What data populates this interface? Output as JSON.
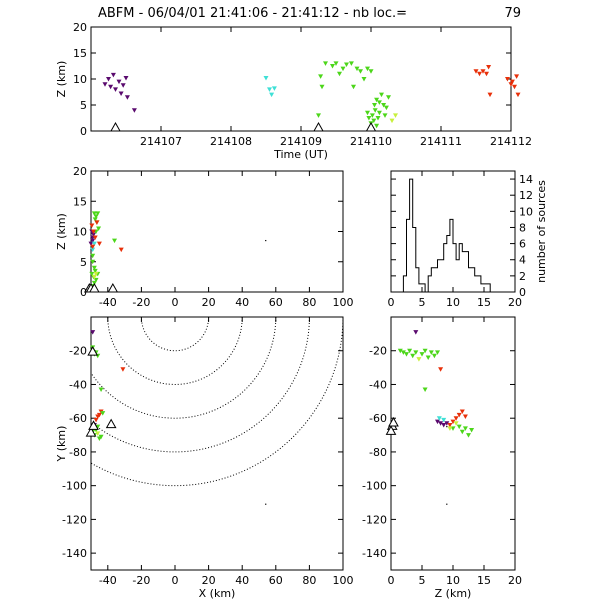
{
  "title": {
    "prefix": "ABFM - 06/04/01 21:41:06 - 21:41:12 - nb loc.=",
    "count": "79"
  },
  "chart_data": [
    {
      "id": "time_z",
      "type": "scatter",
      "xlabel": "Time (UT)",
      "ylabel": "Z (km)",
      "xlim": [
        214106.0,
        214112.0
      ],
      "ylim": [
        0,
        20
      ],
      "xticks": [
        "214107",
        "214108",
        "214109",
        "214110",
        "214111",
        "214112"
      ],
      "yticks": [
        "0",
        "5",
        "10",
        "15",
        "20"
      ],
      "stations_x": [
        214106.35,
        214109.25,
        214110.0
      ],
      "points": [
        {
          "x": 214106.2,
          "y": 9.0,
          "c": "#5a0a6e"
        },
        {
          "x": 214106.25,
          "y": 10.0,
          "c": "#5a0a6e"
        },
        {
          "x": 214106.28,
          "y": 8.5,
          "c": "#5a0a6e"
        },
        {
          "x": 214106.32,
          "y": 10.8,
          "c": "#5a0a6e"
        },
        {
          "x": 214106.35,
          "y": 8.0,
          "c": "#5a0a6e"
        },
        {
          "x": 214106.4,
          "y": 9.5,
          "c": "#5a0a6e"
        },
        {
          "x": 214106.43,
          "y": 7.2,
          "c": "#5a0a6e"
        },
        {
          "x": 214106.46,
          "y": 8.8,
          "c": "#5a0a6e"
        },
        {
          "x": 214106.5,
          "y": 10.2,
          "c": "#5a0a6e"
        },
        {
          "x": 214106.52,
          "y": 6.5,
          "c": "#5a0a6e"
        },
        {
          "x": 214106.62,
          "y": 4.0,
          "c": "#5a0a6e"
        },
        {
          "x": 214108.5,
          "y": 10.2,
          "c": "#3ee0d6"
        },
        {
          "x": 214108.55,
          "y": 8.0,
          "c": "#3ee0d6"
        },
        {
          "x": 214108.58,
          "y": 7.0,
          "c": "#3ee0d6"
        },
        {
          "x": 214108.62,
          "y": 8.2,
          "c": "#3ee0d6"
        },
        {
          "x": 214109.25,
          "y": 3.0,
          "c": "#4cd61a"
        },
        {
          "x": 214109.28,
          "y": 10.5,
          "c": "#4cd61a"
        },
        {
          "x": 214109.3,
          "y": 8.5,
          "c": "#4cd61a"
        },
        {
          "x": 214109.35,
          "y": 13.0,
          "c": "#4cd61a"
        },
        {
          "x": 214109.45,
          "y": 12.5,
          "c": "#4cd61a"
        },
        {
          "x": 214109.5,
          "y": 13.0,
          "c": "#4cd61a"
        },
        {
          "x": 214109.55,
          "y": 11.0,
          "c": "#4cd61a"
        },
        {
          "x": 214109.6,
          "y": 12.0,
          "c": "#4cd61a"
        },
        {
          "x": 214109.65,
          "y": 12.8,
          "c": "#4cd61a"
        },
        {
          "x": 214109.72,
          "y": 13.0,
          "c": "#4cd61a"
        },
        {
          "x": 214109.8,
          "y": 12.0,
          "c": "#4cd61a"
        },
        {
          "x": 214109.85,
          "y": 11.5,
          "c": "#4cd61a"
        },
        {
          "x": 214109.9,
          "y": 10.0,
          "c": "#4cd61a"
        },
        {
          "x": 214109.95,
          "y": 12.0,
          "c": "#4cd61a"
        },
        {
          "x": 214110.0,
          "y": 11.5,
          "c": "#4cd61a"
        },
        {
          "x": 214109.75,
          "y": 8.5,
          "c": "#4cd61a"
        },
        {
          "x": 214109.95,
          "y": 3.5,
          "c": "#4cd61a"
        },
        {
          "x": 214109.97,
          "y": 2.5,
          "c": "#4cd61a"
        },
        {
          "x": 214110.0,
          "y": 1.5,
          "c": "#4cd61a"
        },
        {
          "x": 214110.02,
          "y": 3.0,
          "c": "#4cd61a"
        },
        {
          "x": 214110.04,
          "y": 2.0,
          "c": "#4cd61a"
        },
        {
          "x": 214110.06,
          "y": 4.0,
          "c": "#4cd61a"
        },
        {
          "x": 214110.08,
          "y": 1.0,
          "c": "#4cd61a"
        },
        {
          "x": 214110.1,
          "y": 2.5,
          "c": "#4cd61a"
        },
        {
          "x": 214110.12,
          "y": 3.5,
          "c": "#4cd61a"
        },
        {
          "x": 214110.05,
          "y": 5.0,
          "c": "#4cd61a"
        },
        {
          "x": 214110.08,
          "y": 6.0,
          "c": "#4cd61a"
        },
        {
          "x": 214110.12,
          "y": 5.5,
          "c": "#4cd61a"
        },
        {
          "x": 214110.15,
          "y": 7.0,
          "c": "#4cd61a"
        },
        {
          "x": 214110.18,
          "y": 5.0,
          "c": "#4cd61a"
        },
        {
          "x": 214110.2,
          "y": 3.0,
          "c": "#4cd61a"
        },
        {
          "x": 214110.22,
          "y": 4.5,
          "c": "#4cd61a"
        },
        {
          "x": 214110.25,
          "y": 6.5,
          "c": "#4cd61a"
        },
        {
          "x": 214110.3,
          "y": 2.0,
          "c": "#c8f03c"
        },
        {
          "x": 214110.35,
          "y": 3.0,
          "c": "#c8f03c"
        },
        {
          "x": 214111.5,
          "y": 11.5,
          "c": "#e8300a"
        },
        {
          "x": 214111.55,
          "y": 11.0,
          "c": "#e8300a"
        },
        {
          "x": 214111.6,
          "y": 11.5,
          "c": "#e8300a"
        },
        {
          "x": 214111.65,
          "y": 11.0,
          "c": "#e8300a"
        },
        {
          "x": 214111.68,
          "y": 12.3,
          "c": "#e8300a"
        },
        {
          "x": 214111.7,
          "y": 7.0,
          "c": "#e8300a"
        },
        {
          "x": 214111.95,
          "y": 10.0,
          "c": "#e8300a"
        },
        {
          "x": 214112.0,
          "y": 9.0,
          "c": "#e8300a"
        },
        {
          "x": 214112.02,
          "y": 9.5,
          "c": "#e8300a"
        },
        {
          "x": 214112.05,
          "y": 8.5,
          "c": "#e8300a"
        },
        {
          "x": 214112.08,
          "y": 10.5,
          "c": "#e8300a"
        },
        {
          "x": 214112.1,
          "y": 7.0,
          "c": "#e8300a"
        }
      ]
    },
    {
      "id": "x_z",
      "type": "scatter",
      "xlabel": "",
      "ylabel": "Z (km)",
      "xlim": [
        -50,
        100
      ],
      "ylim": [
        0,
        20
      ],
      "xticks": [
        "-40",
        "-20",
        "0",
        "20",
        "40",
        "60",
        "80",
        "100"
      ],
      "yticks": [
        "0",
        "5",
        "10",
        "15",
        "20"
      ],
      "stations_x": [
        -51,
        -50,
        -48,
        -37
      ],
      "points": [
        {
          "x": -49,
          "y": 9.0,
          "c": "#5a0a6e"
        },
        {
          "x": -49.5,
          "y": 10.0,
          "c": "#5a0a6e"
        },
        {
          "x": -49,
          "y": 8.5,
          "c": "#5a0a6e"
        },
        {
          "x": -48.5,
          "y": 9.5,
          "c": "#5a0a6e"
        },
        {
          "x": -50,
          "y": 8.0,
          "c": "#5a0a6e"
        },
        {
          "x": -49,
          "y": 7.0,
          "c": "#3ee0d6"
        },
        {
          "x": -48,
          "y": 8.0,
          "c": "#3ee0d6"
        },
        {
          "x": -48,
          "y": 13.0,
          "c": "#4cd61a"
        },
        {
          "x": -47,
          "y": 12.5,
          "c": "#4cd61a"
        },
        {
          "x": -47.5,
          "y": 12.0,
          "c": "#4cd61a"
        },
        {
          "x": -46,
          "y": 13.0,
          "c": "#4cd61a"
        },
        {
          "x": -46.5,
          "y": 11.5,
          "c": "#4cd61a"
        },
        {
          "x": -45.5,
          "y": 10.5,
          "c": "#4cd61a"
        },
        {
          "x": -47,
          "y": 10.0,
          "c": "#4cd61a"
        },
        {
          "x": -49,
          "y": 6.0,
          "c": "#4cd61a"
        },
        {
          "x": -49,
          "y": 5.0,
          "c": "#4cd61a"
        },
        {
          "x": -48,
          "y": 4.0,
          "c": "#4cd61a"
        },
        {
          "x": -49.5,
          "y": 3.0,
          "c": "#4cd61a"
        },
        {
          "x": -48.5,
          "y": 2.5,
          "c": "#4cd61a"
        },
        {
          "x": -47.5,
          "y": 3.5,
          "c": "#4cd61a"
        },
        {
          "x": -48,
          "y": 1.5,
          "c": "#4cd61a"
        },
        {
          "x": -49,
          "y": 1.0,
          "c": "#4cd61a"
        },
        {
          "x": -47,
          "y": 2.0,
          "c": "#4cd61a"
        },
        {
          "x": -46,
          "y": 3.0,
          "c": "#4cd61a"
        },
        {
          "x": -36,
          "y": 8.5,
          "c": "#4cd61a"
        },
        {
          "x": -48,
          "y": 2.5,
          "c": "#c8f03c"
        },
        {
          "x": -47,
          "y": 3.0,
          "c": "#c8f03c"
        },
        {
          "x": -49.5,
          "y": 11.0,
          "c": "#e8300a"
        },
        {
          "x": -48.5,
          "y": 10.0,
          "c": "#e8300a"
        },
        {
          "x": -47.5,
          "y": 9.0,
          "c": "#e8300a"
        },
        {
          "x": -46.5,
          "y": 11.5,
          "c": "#e8300a"
        },
        {
          "x": -45,
          "y": 8.0,
          "c": "#e8300a"
        },
        {
          "x": -49,
          "y": 7.5,
          "c": "#e8300a"
        },
        {
          "x": -32,
          "y": 7.0,
          "c": "#e8300a"
        },
        {
          "x": 54,
          "y": 8.5,
          "c": "#000000"
        }
      ]
    },
    {
      "id": "histogram",
      "type": "bar",
      "xlabel": "",
      "ylabel": "number of sources",
      "xlim": [
        0,
        20
      ],
      "ylim": [
        0,
        15
      ],
      "bin_width": 0.5,
      "xticks": [
        "0",
        "5",
        "10",
        "15",
        "20"
      ],
      "yticks": [
        "0",
        "2",
        "4",
        "6",
        "8",
        "10",
        "12",
        "14"
      ],
      "bin_start": 0,
      "counts": [
        0,
        0,
        0,
        0,
        2,
        9,
        14,
        8,
        3,
        1,
        1,
        0,
        2,
        3,
        3,
        4,
        4,
        6,
        7,
        9,
        6,
        4,
        6,
        5,
        5,
        3,
        3,
        2,
        2,
        1,
        1,
        1,
        0,
        0,
        0,
        0,
        0,
        0,
        0,
        0
      ]
    },
    {
      "id": "x_y",
      "type": "scatter",
      "xlabel": "X (km)",
      "ylabel": "Y (km)",
      "xlim": [
        -50,
        100
      ],
      "ylim": [
        -150,
        0
      ],
      "xticks": [
        "-40",
        "-20",
        "0",
        "20",
        "40",
        "60",
        "80",
        "100"
      ],
      "yticks": [
        "-140",
        "-120",
        "-100",
        "-80",
        "-60",
        "-40",
        "-20"
      ],
      "range_rings_km": [
        20,
        40,
        60,
        80,
        100
      ],
      "ring_center": [
        0,
        0
      ],
      "stations": [
        {
          "x": -49,
          "y": -22
        },
        {
          "x": -50,
          "y": -70
        },
        {
          "x": -48.5,
          "y": -66
        },
        {
          "x": -38,
          "y": -65
        }
      ],
      "points": [
        {
          "x": -49,
          "y": -9,
          "c": "#5a0a6e"
        },
        {
          "x": -49,
          "y": -20,
          "c": "#4cd61a"
        },
        {
          "x": -48,
          "y": -22,
          "c": "#4cd61a"
        },
        {
          "x": -47,
          "y": -21,
          "c": "#4cd61a"
        },
        {
          "x": -46,
          "y": -23,
          "c": "#4cd61a"
        },
        {
          "x": -49,
          "y": -18,
          "c": "#4cd61a"
        },
        {
          "x": -31,
          "y": -31,
          "c": "#e8300a"
        },
        {
          "x": -44,
          "y": -43,
          "c": "#4cd61a"
        },
        {
          "x": -49,
          "y": -66,
          "c": "#3ee0d6"
        },
        {
          "x": -48,
          "y": -64,
          "c": "#5a0a6e"
        },
        {
          "x": -47,
          "y": -61,
          "c": "#e8300a"
        },
        {
          "x": -46,
          "y": -59,
          "c": "#e8300a"
        },
        {
          "x": -45,
          "y": -58,
          "c": "#e8300a"
        },
        {
          "x": -44,
          "y": -56,
          "c": "#e8300a"
        },
        {
          "x": -43,
          "y": -57,
          "c": "#4cd61a"
        },
        {
          "x": -49,
          "y": -68,
          "c": "#4cd61a"
        },
        {
          "x": -48,
          "y": -70,
          "c": "#4cd61a"
        },
        {
          "x": -47,
          "y": -67,
          "c": "#4cd61a"
        },
        {
          "x": -46,
          "y": -69,
          "c": "#c8f03c"
        },
        {
          "x": -45,
          "y": -72,
          "c": "#4cd61a"
        },
        {
          "x": -44,
          "y": -71,
          "c": "#4cd61a"
        },
        {
          "x": -46,
          "y": -65,
          "c": "#4cd61a"
        },
        {
          "x": 54,
          "y": -111,
          "c": "#000000"
        }
      ]
    },
    {
      "id": "z_y",
      "type": "scatter",
      "xlabel": "Z (km)",
      "ylabel": "",
      "xlim": [
        0,
        20
      ],
      "ylim": [
        -150,
        0
      ],
      "xticks": [
        "0",
        "5",
        "10",
        "15",
        "20"
      ],
      "yticks": [
        "-140",
        "-120",
        "-100",
        "-80",
        "-60",
        "-40",
        "-20"
      ],
      "stations_x": [
        0.2,
        0.0,
        0.4
      ],
      "stations_y": [
        -66,
        -69,
        -64
      ],
      "points": [
        {
          "x": 4,
          "y": -9,
          "c": "#5a0a6e"
        },
        {
          "x": 1.5,
          "y": -20,
          "c": "#4cd61a"
        },
        {
          "x": 2,
          "y": -21,
          "c": "#4cd61a"
        },
        {
          "x": 2.5,
          "y": -22,
          "c": "#4cd61a"
        },
        {
          "x": 3,
          "y": -20,
          "c": "#4cd61a"
        },
        {
          "x": 3.5,
          "y": -23,
          "c": "#4cd61a"
        },
        {
          "x": 4,
          "y": -21,
          "c": "#4cd61a"
        },
        {
          "x": 5,
          "y": -22,
          "c": "#4cd61a"
        },
        {
          "x": 5.5,
          "y": -20,
          "c": "#4cd61a"
        },
        {
          "x": 6,
          "y": -24,
          "c": "#4cd61a"
        },
        {
          "x": 6.5,
          "y": -21,
          "c": "#4cd61a"
        },
        {
          "x": 7,
          "y": -23,
          "c": "#4cd61a"
        },
        {
          "x": 7.5,
          "y": -21,
          "c": "#4cd61a"
        },
        {
          "x": 4.5,
          "y": -25,
          "c": "#c8f03c"
        },
        {
          "x": 8,
          "y": -31,
          "c": "#e8300a"
        },
        {
          "x": 5.5,
          "y": -43,
          "c": "#4cd61a"
        },
        {
          "x": 7.5,
          "y": -62,
          "c": "#5a0a6e"
        },
        {
          "x": 8,
          "y": -63,
          "c": "#5a0a6e"
        },
        {
          "x": 8.5,
          "y": -64,
          "c": "#5a0a6e"
        },
        {
          "x": 9,
          "y": -63,
          "c": "#5a0a6e"
        },
        {
          "x": 7.8,
          "y": -60,
          "c": "#3ee0d6"
        },
        {
          "x": 8.5,
          "y": -61,
          "c": "#3ee0d6"
        },
        {
          "x": 9.5,
          "y": -64,
          "c": "#e8300a"
        },
        {
          "x": 10,
          "y": -62,
          "c": "#e8300a"
        },
        {
          "x": 10.5,
          "y": -60,
          "c": "#e8300a"
        },
        {
          "x": 11,
          "y": -58,
          "c": "#e8300a"
        },
        {
          "x": 11.5,
          "y": -56,
          "c": "#e8300a"
        },
        {
          "x": 12,
          "y": -59,
          "c": "#e8300a"
        },
        {
          "x": 10,
          "y": -66,
          "c": "#4cd61a"
        },
        {
          "x": 11,
          "y": -65,
          "c": "#4cd61a"
        },
        {
          "x": 11.5,
          "y": -68,
          "c": "#4cd61a"
        },
        {
          "x": 12,
          "y": -66,
          "c": "#4cd61a"
        },
        {
          "x": 12.5,
          "y": -70,
          "c": "#4cd61a"
        },
        {
          "x": 13,
          "y": -67,
          "c": "#4cd61a"
        },
        {
          "x": 10.5,
          "y": -63,
          "c": "#c8f03c"
        },
        {
          "x": 9.5,
          "y": -66,
          "c": "#c8f03c"
        },
        {
          "x": 9,
          "y": -65,
          "c": "#000000"
        },
        {
          "x": 9,
          "y": -111,
          "c": "#000000"
        }
      ]
    }
  ]
}
